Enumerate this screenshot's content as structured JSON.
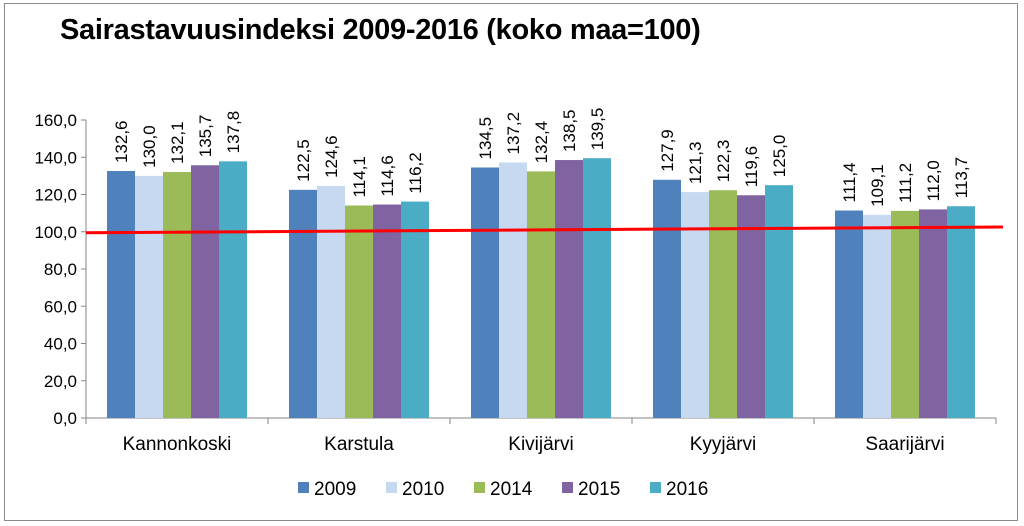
{
  "chart_data": {
    "type": "bar",
    "title": "Sairastavuusindeksi 2009-2016 (koko maa=100)",
    "categories": [
      "Kannonkoski",
      "Karstula",
      "Kivijärvi",
      "Kyyjärvi",
      "Saarijärvi"
    ],
    "series": [
      {
        "name": "2009",
        "color": "#4f81bd",
        "values": [
          132.6,
          122.5,
          134.5,
          127.9,
          111.4
        ],
        "labels": [
          "132,6",
          "122,5",
          "134,5",
          "127,9",
          "111,4"
        ]
      },
      {
        "name": "2010",
        "color": "#c6d9f1",
        "values": [
          130.0,
          124.6,
          137.2,
          121.3,
          109.1
        ],
        "labels": [
          "130,0",
          "124,6",
          "137,2",
          "121,3",
          "109,1"
        ]
      },
      {
        "name": "2014",
        "color": "#9bbb59",
        "values": [
          132.1,
          114.1,
          132.4,
          122.3,
          111.2
        ],
        "labels": [
          "132,1",
          "114,1",
          "132,4",
          "122,3",
          "111,2"
        ]
      },
      {
        "name": "2015",
        "color": "#8064a2",
        "values": [
          135.7,
          114.6,
          138.5,
          119.6,
          112.0
        ],
        "labels": [
          "135,7",
          "114,6",
          "138,5",
          "119,6",
          "112,0"
        ]
      },
      {
        "name": "2016",
        "color": "#4bacc6",
        "values": [
          137.8,
          116.2,
          139.5,
          125.0,
          113.7
        ],
        "labels": [
          "137,8",
          "116,2",
          "139,5",
          "125,0",
          "113,7"
        ]
      }
    ],
    "yticks": [
      "0,0",
      "20,0",
      "40,0",
      "60,0",
      "80,0",
      "100,0",
      "120,0",
      "140,0",
      "160,0"
    ],
    "ylim": [
      0,
      160
    ],
    "reference_line": {
      "value": 100,
      "color": "#ff0000"
    },
    "grid": false,
    "legend_position": "bottom"
  }
}
